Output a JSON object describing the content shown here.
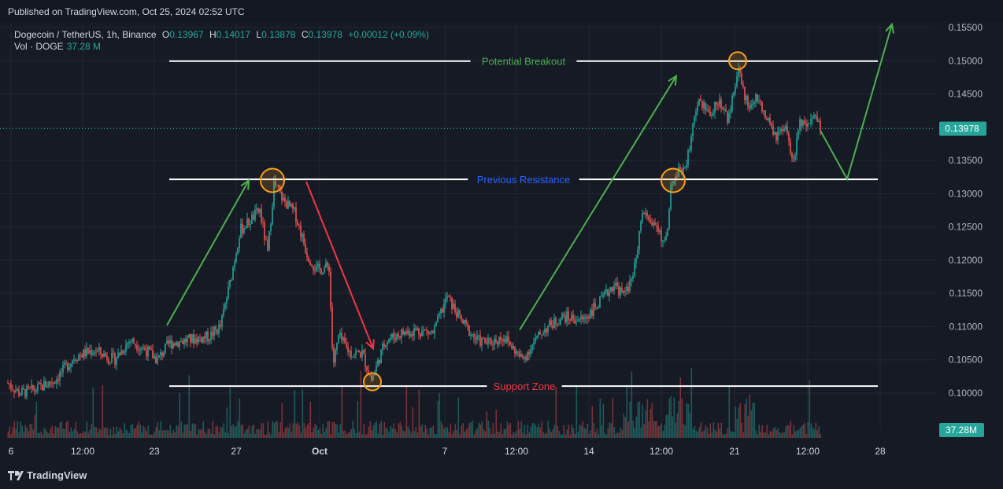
{
  "header": {
    "published": "Published on TradingView.com, Oct 25, 2024 02:52 UTC"
  },
  "legend": {
    "symbol": "Dogecoin / TetherUS, 1h, Binance",
    "o_label": "O",
    "o_value": "0.13967",
    "h_label": "H",
    "h_value": "0.14017",
    "l_label": "L",
    "l_value": "0.13878",
    "c_label": "C",
    "c_value": "0.13978",
    "change": "+0.00012 (+0.09%)",
    "vol_label": "Vol · DOGE",
    "vol_value": "37.28 M"
  },
  "footer": {
    "brand": "TradingView"
  },
  "colors": {
    "up": "#26a69a",
    "down": "#ef5350",
    "bg": "#161a25",
    "grid": "#232734",
    "green_arrow": "#4caf50",
    "red_arrow": "#f23645",
    "circle": "#f7a01d"
  },
  "chart_data": {
    "type": "candlestick",
    "price_axis": [
      "0.15500",
      "0.15000",
      "0.14500",
      "0.14000",
      "0.13500",
      "0.13000",
      "0.12500",
      "0.12000",
      "0.11500",
      "0.11000",
      "0.10500",
      "0.10000"
    ],
    "time_axis": [
      "6",
      "12:00",
      "23",
      "27",
      "Oct",
      "7",
      "12:00",
      "14",
      "12:00",
      "21",
      "12:00",
      "28"
    ],
    "last_price": "0.13978",
    "volume_label": "37.28M",
    "ylim": [
      0.0975,
      0.1565
    ],
    "levels": [
      {
        "label": "Potential Breakout",
        "price": 0.14995,
        "label_color": "#4caf50"
      },
      {
        "label": "Previous Resistance",
        "price": 0.13215,
        "label_color": "#2962ff"
      },
      {
        "label": "Support Zone",
        "price": 0.10105,
        "label_color": "#f23645"
      }
    ],
    "price_path": [
      [
        0,
        0.1025
      ],
      [
        25,
        0.1
      ],
      [
        45,
        0.1005
      ],
      [
        70,
        0.102
      ],
      [
        95,
        0.1055
      ],
      [
        120,
        0.1065
      ],
      [
        145,
        0.105
      ],
      [
        165,
        0.108
      ],
      [
        185,
        0.1065
      ],
      [
        200,
        0.105
      ],
      [
        215,
        0.1075
      ],
      [
        240,
        0.108
      ],
      [
        265,
        0.1085
      ],
      [
        280,
        0.11
      ],
      [
        292,
        0.1165
      ],
      [
        305,
        0.1245
      ],
      [
        318,
        0.126
      ],
      [
        330,
        0.1275
      ],
      [
        340,
        0.121
      ],
      [
        348,
        0.1315
      ],
      [
        360,
        0.129
      ],
      [
        375,
        0.127
      ],
      [
        390,
        0.121
      ],
      [
        402,
        0.1185
      ],
      [
        418,
        0.119
      ],
      [
        423,
        0.104
      ],
      [
        430,
        0.1085
      ],
      [
        445,
        0.106
      ],
      [
        460,
        0.106
      ],
      [
        472,
        0.102
      ],
      [
        490,
        0.108
      ],
      [
        510,
        0.109
      ],
      [
        530,
        0.1095
      ],
      [
        550,
        0.109
      ],
      [
        568,
        0.1145
      ],
      [
        585,
        0.111
      ],
      [
        605,
        0.108
      ],
      [
        620,
        0.1075
      ],
      [
        640,
        0.1085
      ],
      [
        663,
        0.105
      ],
      [
        690,
        0.1095
      ],
      [
        715,
        0.1115
      ],
      [
        740,
        0.111
      ],
      [
        765,
        0.114
      ],
      [
        780,
        0.1165
      ],
      [
        793,
        0.1145
      ],
      [
        808,
        0.1195
      ],
      [
        815,
        0.127
      ],
      [
        825,
        0.126
      ],
      [
        835,
        0.125
      ],
      [
        845,
        0.122
      ],
      [
        852,
        0.1305
      ],
      [
        862,
        0.1335
      ],
      [
        872,
        0.1345
      ],
      [
        880,
        0.14
      ],
      [
        888,
        0.144
      ],
      [
        900,
        0.142
      ],
      [
        915,
        0.144
      ],
      [
        925,
        0.141
      ],
      [
        938,
        0.1485
      ],
      [
        950,
        0.143
      ],
      [
        962,
        0.1445
      ],
      [
        972,
        0.1415
      ],
      [
        985,
        0.1385
      ],
      [
        998,
        0.1395
      ],
      [
        1008,
        0.1345
      ],
      [
        1015,
        0.141
      ],
      [
        1025,
        0.1395
      ],
      [
        1035,
        0.1415
      ],
      [
        1042,
        0.1398
      ]
    ],
    "arrows": [
      {
        "color": "green",
        "from": [
          212,
          0.1102
        ],
        "to": [
          316,
          0.132
        ]
      },
      {
        "color": "red",
        "from": [
          389,
          0.1318
        ],
        "to": [
          474,
          0.1067
        ]
      },
      {
        "color": "green",
        "from": [
          660,
          0.1095
        ],
        "to": [
          859,
          0.1477
        ]
      },
      {
        "color": "green",
        "from": [
          1042,
          0.1395
        ],
        "via": [
          1076,
          0.1322
        ],
        "to": [
          1133,
          0.1555
        ]
      }
    ],
    "markers": [
      {
        "x": 346,
        "price": 0.132
      },
      {
        "x": 473,
        "price": 0.1017
      },
      {
        "x": 855,
        "price": 0.132
      },
      {
        "x": 937,
        "price": 0.15
      }
    ]
  }
}
